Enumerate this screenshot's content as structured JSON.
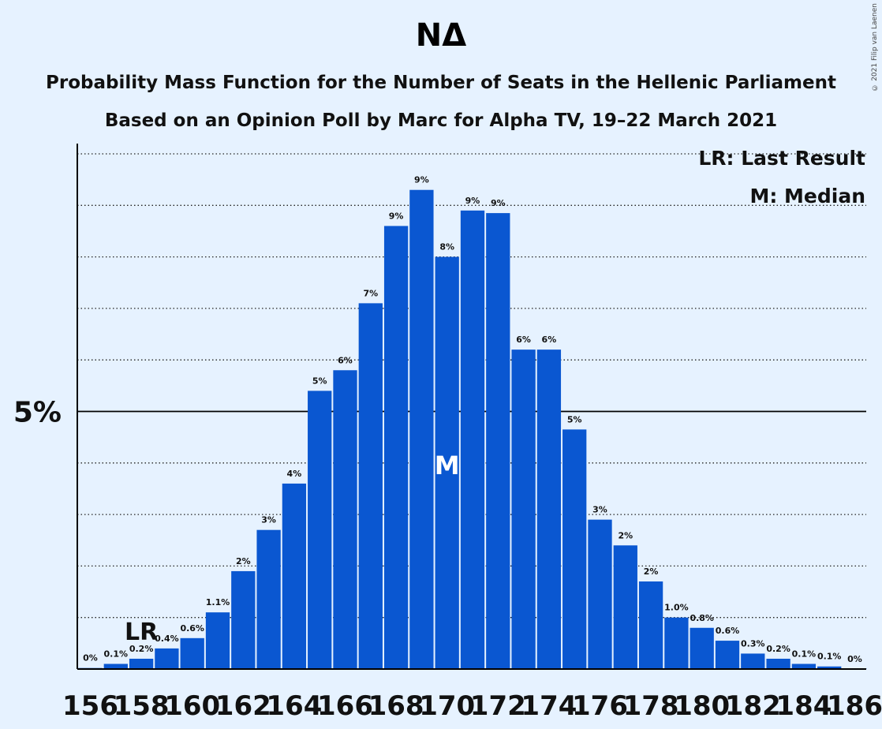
{
  "chart_data": {
    "type": "bar",
    "title": "ΝΔ",
    "subtitle_lines": [
      "Probability Mass Function for the Number of Seats in the Hellenic Parliament",
      "Based on an Opinion Poll by Marc for Alpha TV, 19–22 March 2021"
    ],
    "x": [
      156,
      157,
      158,
      159,
      160,
      161,
      162,
      163,
      164,
      165,
      166,
      167,
      168,
      169,
      170,
      171,
      172,
      173,
      174,
      175,
      176,
      177,
      178,
      179,
      180,
      181,
      182,
      183,
      184,
      185,
      186
    ],
    "values": [
      0.02,
      0.1,
      0.2,
      0.4,
      0.6,
      1.1,
      1.9,
      2.7,
      3.6,
      5.4,
      5.8,
      7.1,
      8.6,
      9.3,
      8.0,
      8.9,
      8.85,
      6.2,
      6.2,
      4.65,
      2.9,
      2.4,
      1.7,
      1.0,
      0.8,
      0.55,
      0.3,
      0.2,
      0.1,
      0.05,
      0.0
    ],
    "bar_labels": [
      "0%",
      "0.1%",
      "0.2%",
      "0.4%",
      "0.6%",
      "1.1%",
      "2%",
      "3%",
      "4%",
      "5%",
      "6%",
      "7%",
      "9%",
      "9%",
      "8%",
      "9%",
      "9%",
      "6%",
      "6%",
      "5%",
      "3%",
      "2%",
      "2%",
      "1.0%",
      "0.8%",
      "0.6%",
      "0.3%",
      "0.2%",
      "0.1%",
      "0.1%",
      "0%"
    ],
    "x_tick_labels": [
      "156",
      "158",
      "160",
      "162",
      "164",
      "166",
      "168",
      "170",
      "172",
      "174",
      "176",
      "178",
      "180",
      "182",
      "184",
      "186"
    ],
    "y_tick_label": "5%",
    "y_tick_value": 5,
    "ylim": [
      0,
      10.2
    ],
    "gridline_step": 1,
    "grid": true,
    "last_result_seat": 158,
    "last_result_marker": "LR",
    "median_seat": 170,
    "median_marker": "M",
    "legend": [
      "LR: Last Result",
      "M: Median"
    ],
    "legend_position": "top-right",
    "bar_color": "#0a57d1",
    "copyright": "© 2021 Filip van Laenen"
  }
}
